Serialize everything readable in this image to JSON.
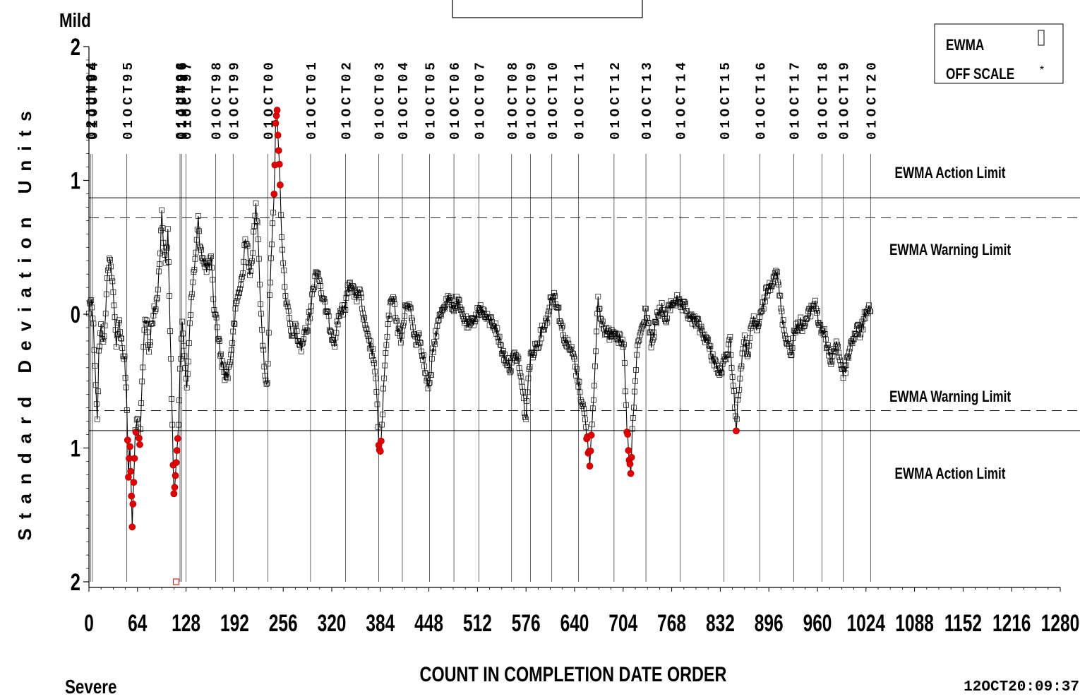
{
  "chart_data": {
    "type": "line",
    "top_label": "Mild",
    "bottom_label": "Severe",
    "xlabel": "COUNT IN COMPLETION DATE ORDER",
    "ylabel": "Standard Deviation Units",
    "timestamp": "12OCT20:09:37",
    "xlim": [
      0,
      1280
    ],
    "x_ticks": [
      0,
      64,
      128,
      192,
      256,
      320,
      384,
      448,
      512,
      576,
      640,
      704,
      768,
      832,
      896,
      960,
      1024,
      1088,
      1152,
      1216,
      1280
    ],
    "ylim": [
      -2,
      2
    ],
    "y_axis_inverted": true,
    "y_ticks": [
      -2,
      -1,
      0,
      1,
      2
    ],
    "y_tick_labels": [
      "2",
      "1",
      "0",
      "1",
      "2"
    ],
    "limits": [
      {
        "label": "EWMA Action Limit",
        "value": -0.87,
        "style": "solid"
      },
      {
        "label": "EWMA Warning Limit",
        "value": -0.72,
        "style": "dashed"
      },
      {
        "label": "EWMA Warning Limit",
        "value": 0.72,
        "style": "dashed"
      },
      {
        "label": "EWMA Action Limit",
        "value": 0.87,
        "style": "solid"
      }
    ],
    "date_markers": [
      {
        "x": 2,
        "label": "02JUN94"
      },
      {
        "x": 4,
        "label": "01OCT94"
      },
      {
        "x": 50,
        "label": "01OCT95"
      },
      {
        "x": 120,
        "label": "01JUN96"
      },
      {
        "x": 122,
        "label": "01OCT96"
      },
      {
        "x": 128,
        "label": "01OCT97"
      },
      {
        "x": 167,
        "label": "01OCT98"
      },
      {
        "x": 190,
        "label": "01OCT99"
      },
      {
        "x": 236,
        "label": "01OCT00"
      },
      {
        "x": 292,
        "label": "01OCT01"
      },
      {
        "x": 338,
        "label": "01OCT02"
      },
      {
        "x": 382,
        "label": "01OCT03"
      },
      {
        "x": 413,
        "label": "01OCT04"
      },
      {
        "x": 449,
        "label": "01OCT05"
      },
      {
        "x": 481,
        "label": "01OCT06"
      },
      {
        "x": 514,
        "label": "01OCT07"
      },
      {
        "x": 557,
        "label": "01OCT08"
      },
      {
        "x": 582,
        "label": "01OCT09"
      },
      {
        "x": 610,
        "label": "01OCT10"
      },
      {
        "x": 645,
        "label": "01OCT11"
      },
      {
        "x": 692,
        "label": "01OCT12"
      },
      {
        "x": 734,
        "label": "01OCT13"
      },
      {
        "x": 779,
        "label": "01OCT14"
      },
      {
        "x": 837,
        "label": "01OCT15"
      },
      {
        "x": 884,
        "label": "01OCT16"
      },
      {
        "x": 929,
        "label": "01OCT17"
      },
      {
        "x": 966,
        "label": "01OCT18"
      },
      {
        "x": 994,
        "label": "01OCT19"
      },
      {
        "x": 1030,
        "label": "01OCT20"
      }
    ],
    "legend": {
      "placement": "top-right",
      "entries": [
        {
          "label": "EWMA",
          "marker": "square"
        },
        {
          "label": "OFF SCALE",
          "marker": "asterisk"
        }
      ]
    },
    "series": [
      {
        "name": "EWMA",
        "keypoints": [
          [
            0,
            -0.02
          ],
          [
            3,
            -0.15
          ],
          [
            6,
            0.1
          ],
          [
            9,
            0.5
          ],
          [
            11,
            0.8
          ],
          [
            13,
            0.3
          ],
          [
            16,
            0.1
          ],
          [
            20,
            0.2
          ],
          [
            24,
            -0.25
          ],
          [
            27,
            -0.45
          ],
          [
            30,
            -0.3
          ],
          [
            33,
            -0.05
          ],
          [
            36,
            0.2
          ],
          [
            40,
            0.05
          ],
          [
            44,
            0.25
          ],
          [
            47,
            0.35
          ],
          [
            50,
            0.7
          ],
          [
            52,
            1.2
          ],
          [
            54,
            1.0
          ],
          [
            57,
            1.55
          ],
          [
            59,
            1.3
          ],
          [
            61,
            0.9
          ],
          [
            64,
            0.8
          ],
          [
            67,
            1.0
          ],
          [
            70,
            0.5
          ],
          [
            73,
            0.1
          ],
          [
            76,
            0.05
          ],
          [
            79,
            0.3
          ],
          [
            82,
            0.1
          ],
          [
            85,
            0.0
          ],
          [
            88,
            -0.05
          ],
          [
            91,
            -0.2
          ],
          [
            94,
            -0.5
          ],
          [
            96,
            -0.75
          ],
          [
            98,
            -0.55
          ],
          [
            101,
            -0.4
          ],
          [
            104,
            -0.6
          ],
          [
            107,
            0.1
          ],
          [
            110,
            0.85
          ],
          [
            112,
            1.35
          ],
          [
            114,
            1.25
          ],
          [
            116,
            1.0
          ],
          [
            118,
            0.8
          ],
          [
            120,
            0.4
          ],
          [
            123,
            0.1
          ],
          [
            126,
            0.3
          ],
          [
            129,
            0.55
          ],
          [
            132,
            0.2
          ],
          [
            135,
            -0.1
          ],
          [
            138,
            -0.3
          ],
          [
            141,
            -0.45
          ],
          [
            144,
            -0.7
          ],
          [
            146,
            -0.55
          ],
          [
            149,
            -0.45
          ],
          [
            153,
            -0.35
          ],
          [
            157,
            -0.35
          ],
          [
            161,
            -0.4
          ],
          [
            165,
            -0.05
          ],
          [
            168,
            0.05
          ],
          [
            171,
            0.2
          ],
          [
            175,
            0.35
          ],
          [
            179,
            0.45
          ],
          [
            183,
            0.45
          ],
          [
            187,
            0.3
          ],
          [
            191,
            0.1
          ],
          [
            195,
            -0.1
          ],
          [
            199,
            -0.2
          ],
          [
            203,
            -0.3
          ],
          [
            206,
            -0.6
          ],
          [
            209,
            -0.5
          ],
          [
            212,
            -0.25
          ],
          [
            216,
            -0.5
          ],
          [
            220,
            -0.8
          ],
          [
            223,
            -0.6
          ],
          [
            226,
            -0.1
          ],
          [
            229,
            0.2
          ],
          [
            232,
            0.45
          ],
          [
            235,
            0.55
          ],
          [
            238,
            -0.1
          ],
          [
            240,
            -0.4
          ],
          [
            242,
            -0.7
          ],
          [
            244,
            -0.9
          ],
          [
            246,
            -1.4
          ],
          [
            248,
            -1.5
          ],
          [
            250,
            -1.25
          ],
          [
            252,
            -0.95
          ],
          [
            254,
            -0.6
          ],
          [
            257,
            -0.3
          ],
          [
            260,
            -0.1
          ],
          [
            264,
            0.05
          ],
          [
            268,
            0.2
          ],
          [
            272,
            0.1
          ],
          [
            276,
            0.2
          ],
          [
            280,
            0.25
          ],
          [
            284,
            0.15
          ],
          [
            288,
            0.1
          ],
          [
            292,
            -0.05
          ],
          [
            296,
            -0.2
          ],
          [
            300,
            -0.35
          ],
          [
            304,
            -0.25
          ],
          [
            308,
            -0.1
          ],
          [
            312,
            -0.05
          ],
          [
            316,
            0.05
          ],
          [
            320,
            0.15
          ],
          [
            324,
            0.2
          ],
          [
            328,
            0.05
          ],
          [
            332,
            -0.05
          ],
          [
            336,
            0.0
          ],
          [
            340,
            -0.15
          ],
          [
            344,
            -0.25
          ],
          [
            348,
            -0.2
          ],
          [
            352,
            -0.1
          ],
          [
            356,
            -0.2
          ],
          [
            360,
            -0.05
          ],
          [
            364,
            0.1
          ],
          [
            368,
            0.2
          ],
          [
            372,
            0.25
          ],
          [
            376,
            0.35
          ],
          [
            380,
            0.7
          ],
          [
            382,
            0.95
          ],
          [
            384,
            1.05
          ],
          [
            386,
            0.85
          ],
          [
            388,
            0.6
          ],
          [
            391,
            0.3
          ],
          [
            395,
            0.05
          ],
          [
            399,
            -0.15
          ],
          [
            403,
            -0.05
          ],
          [
            407,
            0.1
          ],
          [
            411,
            0.2
          ],
          [
            415,
            0.05
          ],
          [
            419,
            -0.1
          ],
          [
            423,
            -0.05
          ],
          [
            427,
            0.1
          ],
          [
            431,
            0.2
          ],
          [
            435,
            0.15
          ],
          [
            440,
            0.3
          ],
          [
            445,
            0.5
          ],
          [
            449,
            0.55
          ],
          [
            453,
            0.3
          ],
          [
            457,
            0.15
          ],
          [
            461,
            0.05
          ],
          [
            466,
            -0.05
          ],
          [
            471,
            -0.1
          ],
          [
            476,
            -0.1
          ],
          [
            481,
            -0.05
          ],
          [
            486,
            -0.1
          ],
          [
            491,
            0.0
          ],
          [
            496,
            0.05
          ],
          [
            501,
            0.1
          ],
          [
            506,
            0.05
          ],
          [
            511,
            0.0
          ],
          [
            516,
            -0.05
          ],
          [
            521,
            0.0
          ],
          [
            526,
            0.05
          ],
          [
            531,
            0.05
          ],
          [
            536,
            0.1
          ],
          [
            541,
            0.2
          ],
          [
            546,
            0.3
          ],
          [
            551,
            0.35
          ],
          [
            556,
            0.4
          ],
          [
            561,
            0.3
          ],
          [
            566,
            0.35
          ],
          [
            571,
            0.55
          ],
          [
            576,
            0.8
          ],
          [
            579,
            0.45
          ],
          [
            583,
            0.3
          ],
          [
            588,
            0.25
          ],
          [
            593,
            0.2
          ],
          [
            598,
            0.1
          ],
          [
            603,
            0.05
          ],
          [
            608,
            -0.1
          ],
          [
            613,
            -0.15
          ],
          [
            618,
            -0.05
          ],
          [
            623,
            0.1
          ],
          [
            628,
            0.2
          ],
          [
            633,
            0.25
          ],
          [
            638,
            0.3
          ],
          [
            643,
            0.45
          ],
          [
            648,
            0.6
          ],
          [
            653,
            0.75
          ],
          [
            657,
            0.95
          ],
          [
            660,
            1.1
          ],
          [
            662,
            0.9
          ],
          [
            665,
            0.6
          ],
          [
            668,
            0.3
          ],
          [
            671,
            -0.1
          ],
          [
            675,
            0.05
          ],
          [
            679,
            0.1
          ],
          [
            683,
            0.15
          ],
          [
            687,
            0.15
          ],
          [
            691,
            0.1
          ],
          [
            695,
            0.15
          ],
          [
            700,
            0.2
          ],
          [
            705,
            0.25
          ],
          [
            709,
            0.85
          ],
          [
            712,
            1.1
          ],
          [
            714,
            1.2
          ],
          [
            716,
            0.9
          ],
          [
            719,
            0.6
          ],
          [
            722,
            0.3
          ],
          [
            726,
            0.15
          ],
          [
            730,
            0.1
          ],
          [
            734,
            -0.05
          ],
          [
            738,
            0.1
          ],
          [
            742,
            0.25
          ],
          [
            746,
            0.1
          ],
          [
            750,
            0.0
          ],
          [
            755,
            -0.05
          ],
          [
            760,
            0.05
          ],
          [
            765,
            -0.05
          ],
          [
            770,
            -0.1
          ],
          [
            775,
            -0.1
          ],
          [
            780,
            -0.05
          ],
          [
            785,
            -0.05
          ],
          [
            790,
            0.0
          ],
          [
            795,
            0.05
          ],
          [
            800,
            0.05
          ],
          [
            805,
            0.1
          ],
          [
            810,
            0.15
          ],
          [
            815,
            0.2
          ],
          [
            820,
            0.3
          ],
          [
            825,
            0.35
          ],
          [
            830,
            0.45
          ],
          [
            835,
            0.4
          ],
          [
            840,
            0.3
          ],
          [
            845,
            0.2
          ],
          [
            850,
            0.6
          ],
          [
            853,
            0.85
          ],
          [
            856,
            0.6
          ],
          [
            860,
            0.35
          ],
          [
            864,
            0.2
          ],
          [
            868,
            0.3
          ],
          [
            872,
            0.15
          ],
          [
            876,
            0.05
          ],
          [
            880,
            0.1
          ],
          [
            884,
            0.05
          ],
          [
            888,
            -0.05
          ],
          [
            892,
            -0.15
          ],
          [
            896,
            -0.2
          ],
          [
            900,
            -0.25
          ],
          [
            905,
            -0.35
          ],
          [
            909,
            -0.2
          ],
          [
            913,
            0.0
          ],
          [
            917,
            0.15
          ],
          [
            921,
            0.2
          ],
          [
            925,
            0.3
          ],
          [
            929,
            0.15
          ],
          [
            933,
            0.1
          ],
          [
            937,
            0.05
          ],
          [
            941,
            0.1
          ],
          [
            945,
            0.05
          ],
          [
            949,
            0.0
          ],
          [
            953,
            -0.05
          ],
          [
            957,
            -0.1
          ],
          [
            961,
            0.05
          ],
          [
            965,
            0.1
          ],
          [
            969,
            0.15
          ],
          [
            973,
            0.25
          ],
          [
            977,
            0.35
          ],
          [
            981,
            0.3
          ],
          [
            985,
            0.2
          ],
          [
            989,
            0.3
          ],
          [
            993,
            0.45
          ],
          [
            997,
            0.4
          ],
          [
            1001,
            0.3
          ],
          [
            1005,
            0.2
          ],
          [
            1009,
            0.15
          ],
          [
            1013,
            0.1
          ],
          [
            1017,
            0.15
          ],
          [
            1021,
            0.05
          ],
          [
            1025,
            -0.05
          ],
          [
            1030,
            -0.02
          ]
        ]
      },
      {
        "name": "OFF SCALE",
        "points": [
          [
            115,
            2.0
          ]
        ]
      }
    ]
  }
}
